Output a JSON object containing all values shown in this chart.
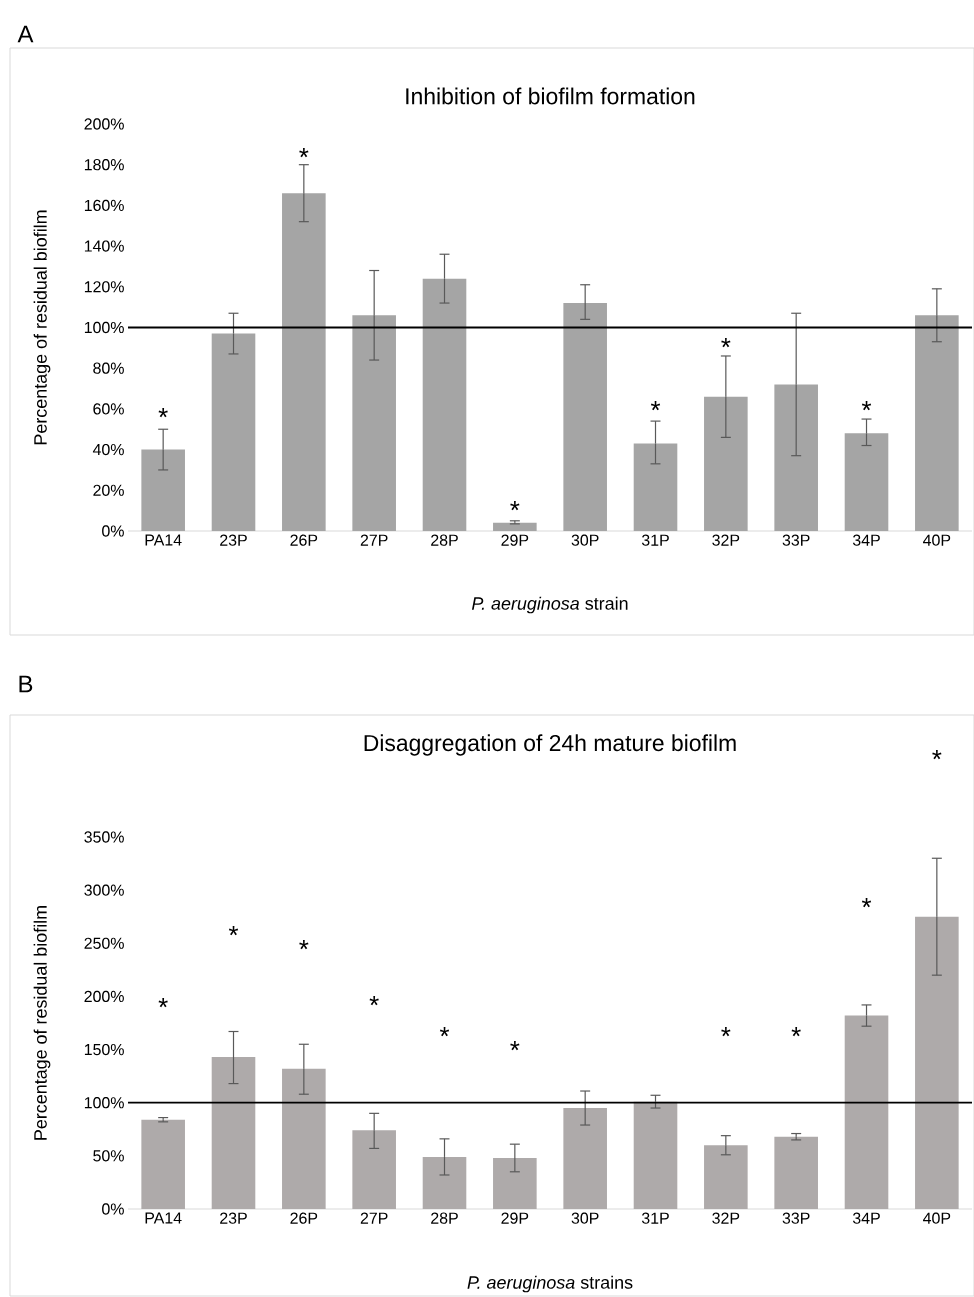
{
  "chart_data": [
    {
      "type": "bar",
      "title": "Inhibition of biofilm formation",
      "xlabel": "*P. aeruginosa* strain",
      "ylabel": "Percentage of residual biofilm",
      "categories": [
        "PA14",
        "23P",
        "26P",
        "27P",
        "28P",
        "29P",
        "30P",
        "31P",
        "32P",
        "33P",
        "34P",
        "40P"
      ],
      "values": [
        40,
        97,
        166,
        106,
        124,
        4,
        112,
        43,
        66,
        72,
        48,
        106
      ],
      "errors": [
        [
          30,
          50
        ],
        [
          87,
          107
        ],
        [
          152,
          180
        ],
        [
          84,
          128
        ],
        [
          112,
          136
        ],
        [
          3.5,
          5
        ],
        [
          104,
          121
        ],
        [
          33,
          54
        ],
        [
          46,
          86
        ],
        [
          37,
          107
        ],
        [
          42,
          55
        ],
        [
          93,
          119
        ]
      ],
      "color": "#a5a5a5",
      "ylim": [
        0,
        200
      ],
      "yticks": [
        {
          "value": 0,
          "label": "0%"
        },
        {
          "value": 20,
          "label": "20%"
        },
        {
          "value": 40,
          "label": "40%"
        },
        {
          "value": 60,
          "label": "60%"
        },
        {
          "value": 80,
          "label": "80%"
        },
        {
          "value": 100,
          "label": "100%"
        },
        {
          "value": 120,
          "label": "120%"
        },
        {
          "value": 140,
          "label": "140%"
        },
        {
          "value": 160,
          "label": "160%"
        },
        {
          "value": 180,
          "label": "180%"
        },
        {
          "value": 200,
          "label": "200%"
        }
      ],
      "ref_lines": [
        {
          "axis": "y",
          "value": 100,
          "color": "#000000"
        }
      ],
      "annotations": [
        "A",
        "*",
        "*",
        "*",
        "*",
        "*",
        "*"
      ]
    },
    {
      "type": "bar",
      "title": "Disaggregation of 24h mature biofilm",
      "xlabel": "*P. aeruginosa* strains",
      "ylabel": "Percentage of residual biofilm",
      "categories": [
        "PA14",
        "23P",
        "26P",
        "27P",
        "28P",
        "29P",
        "30P",
        "31P",
        "32P",
        "33P",
        "34P",
        "40P"
      ],
      "values": [
        84,
        143,
        132,
        74,
        49,
        48,
        95,
        101,
        60,
        68,
        182,
        275
      ],
      "errors": [
        [
          82,
          86
        ],
        [
          118,
          167
        ],
        [
          108,
          155
        ],
        [
          57,
          90
        ],
        [
          32,
          66
        ],
        [
          35,
          61
        ],
        [
          79,
          111
        ],
        [
          95,
          107
        ],
        [
          51,
          69
        ],
        [
          65,
          71
        ],
        [
          172,
          192
        ],
        [
          220,
          330
        ]
      ],
      "color": "#aeaaaa",
      "ylim": [
        0,
        350
      ],
      "yticks": [
        {
          "value": 0,
          "label": "0%"
        },
        {
          "value": 50,
          "label": "50%"
        },
        {
          "value": 100,
          "label": "100%"
        },
        {
          "value": 150,
          "label": "150%"
        },
        {
          "value": 200,
          "label": "200%"
        },
        {
          "value": 250,
          "label": "250%"
        },
        {
          "value": 300,
          "label": "300%"
        },
        {
          "value": 350,
          "label": "350%"
        }
      ],
      "ref_lines": [
        {
          "axis": "y",
          "value": 100,
          "color": "#000000"
        }
      ],
      "annotations": [
        "B",
        "*",
        "*",
        "*",
        "*",
        "*",
        "*",
        "*",
        "*",
        "*",
        "*"
      ]
    }
  ]
}
